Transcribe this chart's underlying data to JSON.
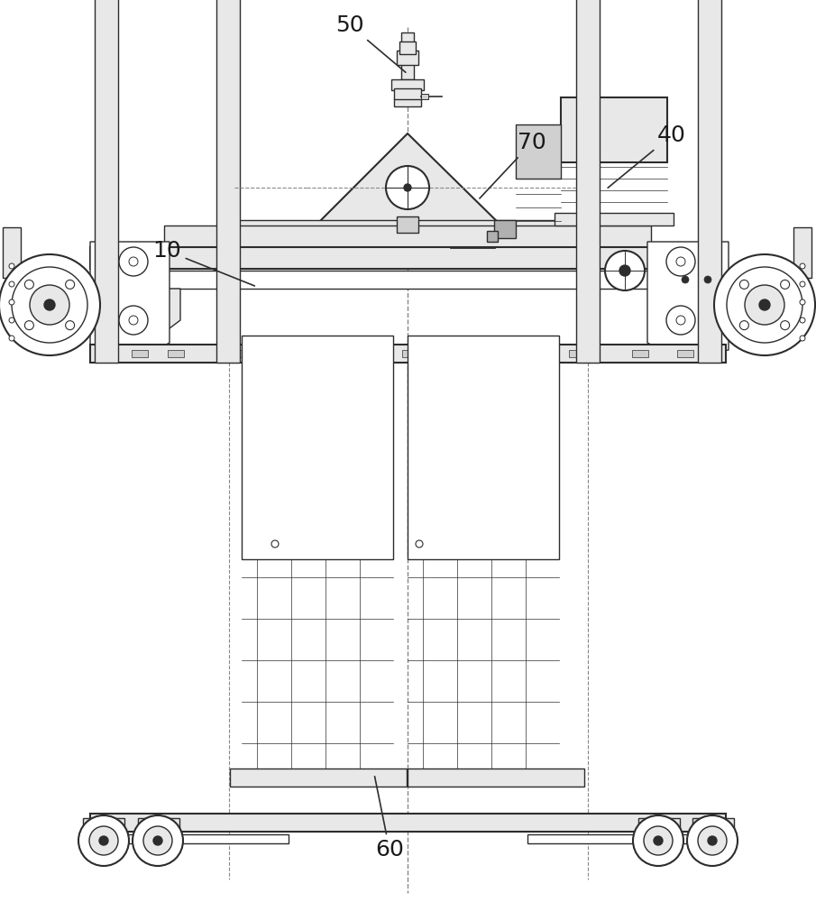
{
  "bg_color": "#ffffff",
  "line_color": "#2d2d2d",
  "fill_light": "#e8e8e8",
  "fill_medium": "#d0d0d0",
  "fill_dark": "#b0b0b0",
  "dash_color": "#888888",
  "label_color": "#1a1a1a",
  "label_fontsize": 18
}
